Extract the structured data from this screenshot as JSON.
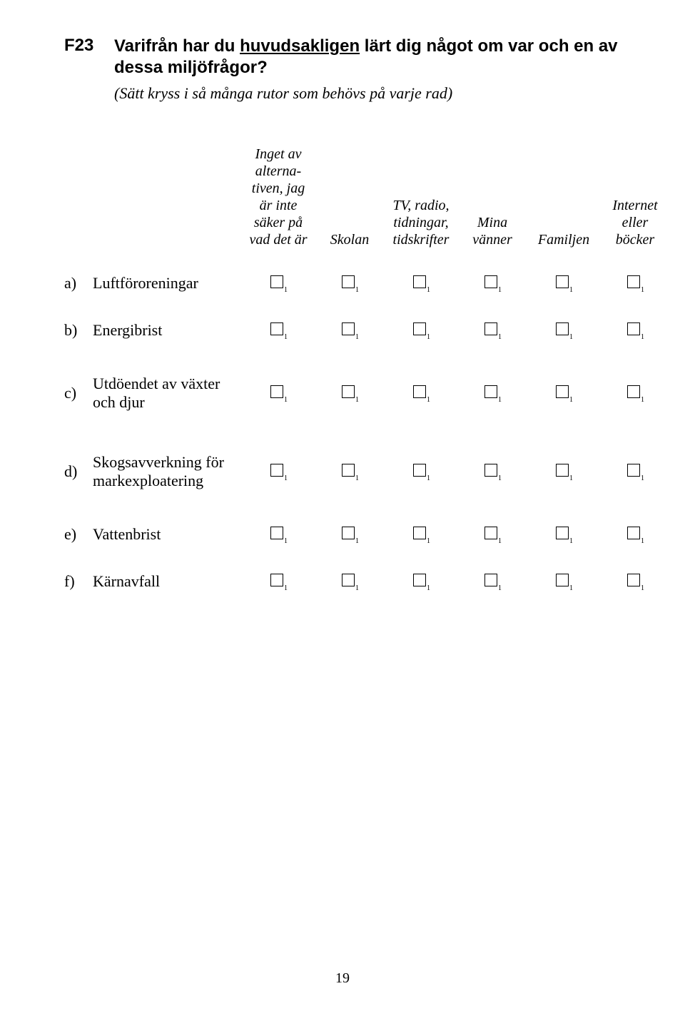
{
  "question": {
    "number": "F23",
    "title_pre": "Varifrån har du ",
    "title_underlined": "huvudsakligen",
    "title_post": " lärt dig något om var och en av dessa miljöfrågor?",
    "subtitle": "(Sätt kryss i  så många rutor som behövs på varje rad)"
  },
  "columns": [
    "Inget av alterna-tiven, jag är inte säker på vad det är",
    "Skolan",
    "TV, radio, tidningar, tidskrifter",
    "Mina vänner",
    "Familjen",
    "Internet eller böcker"
  ],
  "rows": [
    {
      "lead": "a)",
      "label": "Luftföroreningar",
      "tall": false
    },
    {
      "lead": "b)",
      "label": "Energibrist",
      "tall": false
    },
    {
      "lead": "c)",
      "label": "Utdöendet av växter och djur",
      "tall": true
    },
    {
      "lead": "d)",
      "label": "Skogsavverkning för markexploatering",
      "tall": true
    },
    {
      "lead": "e)",
      "label": "Vattenbrist",
      "tall": false
    },
    {
      "lead": "f)",
      "label": "Kärnavfall",
      "tall": false
    }
  ],
  "checkbox_subscript": "1",
  "page_number": "19"
}
